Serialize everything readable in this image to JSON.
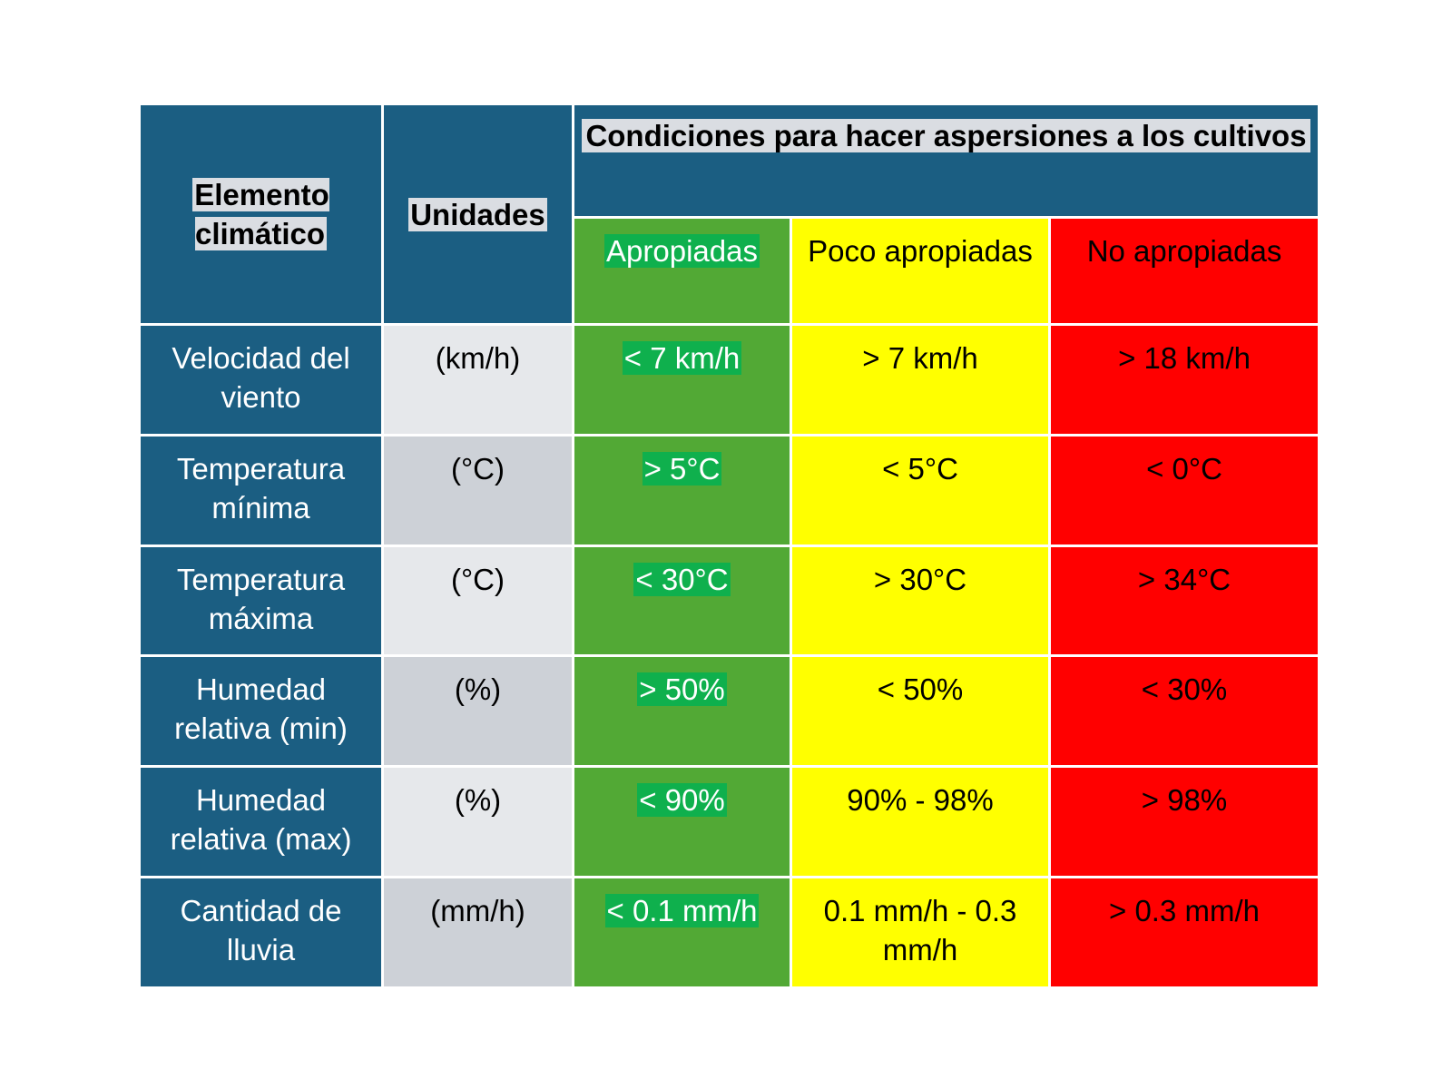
{
  "header": {
    "element_label": "Elemento climático",
    "units_label": "Unidades",
    "conditions_label": "Condiciones para hacer aspersiones a los cultivos",
    "categories": [
      "Apropiadas",
      "Poco apropiadas",
      "No apropiadas"
    ]
  },
  "colors": {
    "header_blue": "#1b5e82",
    "appropriate_green": "#52a935",
    "somewhat_yellow": "#ffff00",
    "not_red": "#ff0000",
    "units_light": "#e6e8eb",
    "units_dark": "#cdd1d7"
  },
  "rows": [
    {
      "element": "Velocidad del viento",
      "units": "(km/h)",
      "appropriate": "< 7 km/h",
      "somewhat": "> 7 km/h",
      "not": "> 18 km/h"
    },
    {
      "element": "Temperatura mínima",
      "units": "(°C)",
      "appropriate": "> 5°C",
      "somewhat": "< 5°C",
      "not": "< 0°C"
    },
    {
      "element": "Temperatura máxima",
      "units": "(°C)",
      "appropriate": "< 30°C",
      "somewhat": "> 30°C",
      "not": "> 34°C"
    },
    {
      "element": "Humedad relativa (min)",
      "units": "(%)",
      "appropriate": "> 50%",
      "somewhat": "< 50%",
      "not": "< 30%"
    },
    {
      "element": "Humedad relativa (max)",
      "units": "(%)",
      "appropriate": "< 90%",
      "somewhat": "90% - 98%",
      "not": "> 98%"
    },
    {
      "element": "Cantidad de lluvia",
      "units": "(mm/h)",
      "appropriate": "< 0.1 mm/h",
      "somewhat": "0.1 mm/h - 0.3 mm/h",
      "not": "> 0.3 mm/h"
    }
  ]
}
